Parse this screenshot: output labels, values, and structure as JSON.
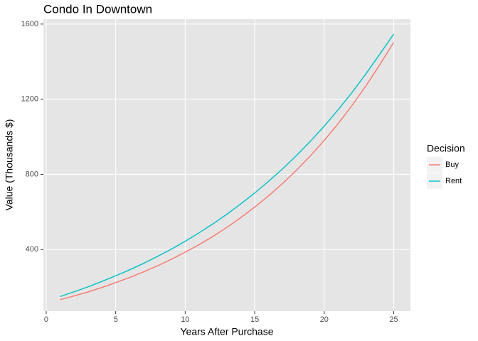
{
  "chart_data": {
    "type": "line",
    "title": "Condo In Downtown",
    "x_label": "Years After Purchase",
    "y_label": "Value (Thousands $)",
    "legend_title": "Decision",
    "legend_position": "right",
    "grid": true,
    "x": [
      1,
      2,
      3,
      4,
      5,
      6,
      7,
      8,
      9,
      10,
      11,
      12,
      13,
      14,
      15,
      16,
      17,
      18,
      19,
      20,
      21,
      22,
      23,
      24,
      25
    ],
    "series": [
      {
        "name": "Buy",
        "color": "#f8766d",
        "values": [
          133,
          153,
          174,
          198,
          224,
          251,
          281,
          313,
          348,
          386,
          426,
          470,
          518,
          570,
          626,
          686,
          751,
          822,
          898,
          981,
          1070,
          1167,
          1271,
          1384,
          1503
        ]
      },
      {
        "name": "Rent",
        "color": "#00bfc4",
        "values": [
          150,
          175,
          201,
          230,
          260,
          292,
          326,
          363,
          402,
          444,
          489,
          537,
          588,
          643,
          701,
          763,
          829,
          900,
          976,
          1057,
          1144,
          1236,
          1335,
          1440,
          1547
        ]
      }
    ],
    "xlim": [
      -0.2,
      26.2
    ],
    "xticks": [
      0,
      5,
      10,
      15,
      20,
      25
    ],
    "ylim": [
      72,
      1626
    ],
    "yticks": [
      400,
      800,
      1200,
      1600
    ]
  }
}
